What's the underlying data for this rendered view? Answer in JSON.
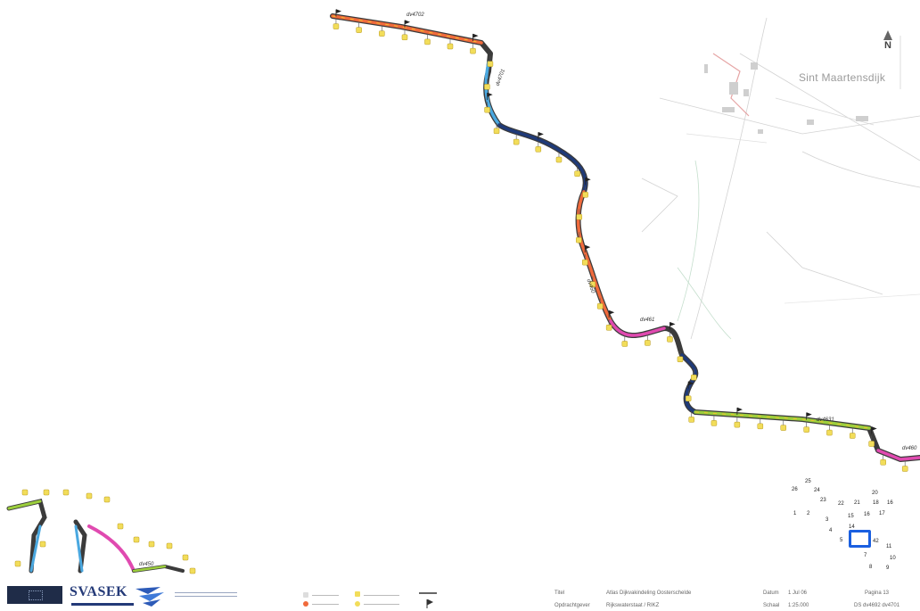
{
  "map": {
    "place_name": "Sint Maartensdijk",
    "north_label": "N",
    "segment_labels": [
      "dv4702",
      "dv4701",
      "dv460",
      "dv461",
      "dv4631",
      "dv460",
      "dv450"
    ],
    "index_numbers": [
      "25",
      "26",
      "24",
      "23",
      "22",
      "21",
      "20",
      "18",
      "16",
      "1",
      "2",
      "3",
      "15",
      "16",
      "17",
      "4",
      "14",
      "5",
      "42",
      "11",
      "7",
      "10",
      "8",
      "9"
    ],
    "colors": {
      "dark_blue": "#1f3a78",
      "light_blue": "#4aa8e0",
      "red_orange": "#f06a3c",
      "green_yellow": "#9ccf3c",
      "pink": "#e04ab0",
      "marker_yellow": "#f2dd5a",
      "index_highlight": "#1a5fe0"
    },
    "icons": [
      "north-arrow-icon",
      "marker-icon",
      "flag-icon"
    ]
  },
  "footer": {
    "company": "SVASEK",
    "titel_label": "Titel",
    "titel_value": "Atlas Dijkvakindeling Oosterschelde",
    "opdrachtgever_label": "Opdrachtgever",
    "opdrachtgever_value": "Rijkswaterstaat / RIKZ",
    "datum_label": "Datum",
    "datum_value": "1 Jul 06",
    "schaal_label": "Schaal",
    "schaal_value": "1:25.000",
    "pagina": "Pagina 13",
    "ds": "DS dv4692 dv4701"
  }
}
